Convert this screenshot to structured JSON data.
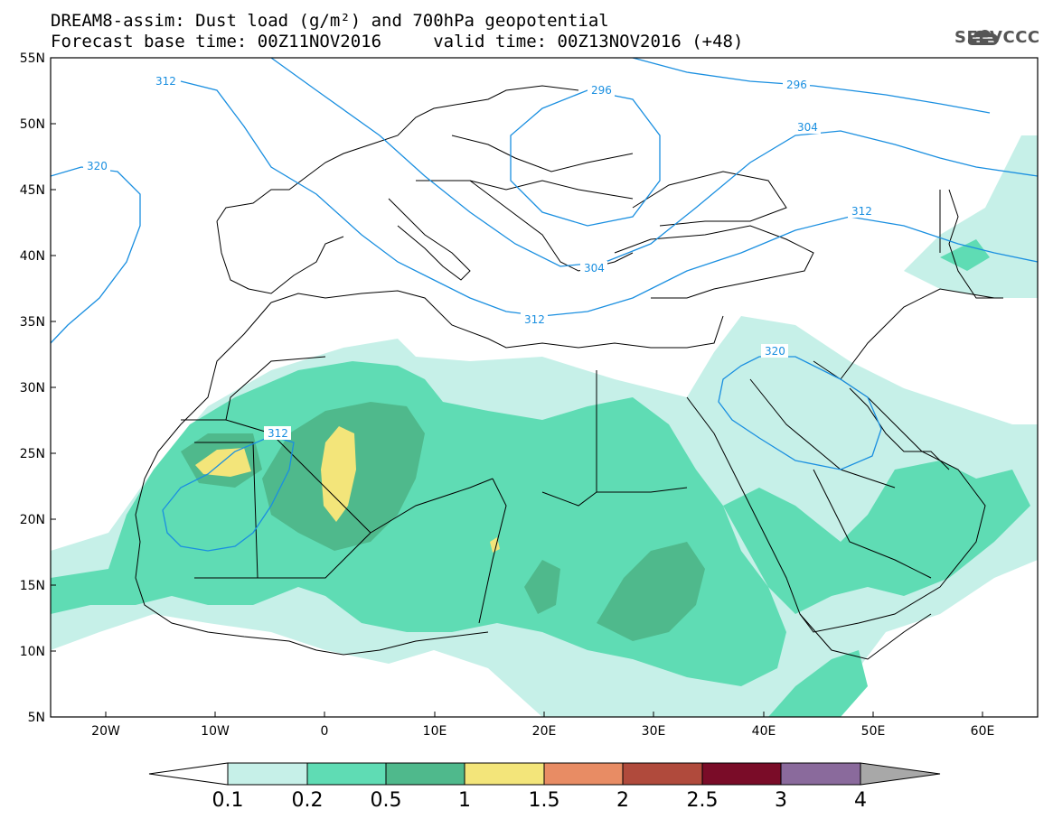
{
  "header": {
    "title_line1": "DREAM8-assim: Dust load (g/m²) and 700hPa geopotential",
    "title_line2": "Forecast base time: 00Z11NOV2016     valid time: 00Z13NOV2016 (+48)",
    "logo_text": "SEEVCCC",
    "logo_icon": "cloud-icon"
  },
  "axes": {
    "lat_labels": [
      "55N",
      "50N",
      "45N",
      "40N",
      "35N",
      "30N",
      "25N",
      "20N",
      "15N",
      "10N",
      "5N"
    ],
    "lon_labels": [
      "20W",
      "10W",
      "0",
      "10E",
      "20E",
      "30E",
      "40E",
      "50E",
      "60E"
    ]
  },
  "contour_labels": [
    "312",
    "320",
    "296",
    "296",
    "304",
    "312",
    "304",
    "312",
    "320",
    "312"
  ],
  "colorbar": {
    "labels": [
      "0.1",
      "0.2",
      "0.5",
      "1",
      "1.5",
      "2",
      "2.5",
      "3",
      "4"
    ],
    "colors": [
      "#c6f0e8",
      "#5fdcb4",
      "#4fb98c",
      "#f3e57a",
      "#e88c64",
      "#b04a3c",
      "#7a0c28",
      "#8a6a9c",
      "#a8a8a8"
    ]
  },
  "colors": {
    "light_dust": "#c6f0e8",
    "medium_dust": "#5fdcb4",
    "dark_dust": "#4fb98c",
    "yellow_dust": "#f3e57a",
    "geopotential": "#1a8fe0"
  }
}
